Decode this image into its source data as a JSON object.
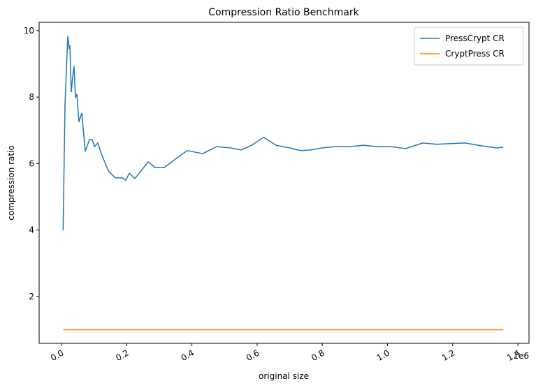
{
  "chart_data": {
    "type": "line",
    "title": "Compression Ratio Benchmark",
    "x_label": "original size",
    "y_label": "compression ratio",
    "x_offset_label": "1e6",
    "xlim": [
      -68600,
      1434000
    ],
    "ylim": [
      0.59,
      10.25
    ],
    "xticks": [
      {
        "value": 0,
        "label": "0.0"
      },
      {
        "value": 200000,
        "label": "0.2"
      },
      {
        "value": 400000,
        "label": "0.4"
      },
      {
        "value": 600000,
        "label": "0.6"
      },
      {
        "value": 800000,
        "label": "0.8"
      },
      {
        "value": 1000000,
        "label": "1.0"
      },
      {
        "value": 1200000,
        "label": "1.2"
      },
      {
        "value": 1400000,
        "label": "1.4"
      }
    ],
    "yticks": [
      2,
      4,
      6,
      8,
      10
    ],
    "grid": false,
    "legend": "upper right",
    "series": [
      {
        "name": "PressCrypt CR",
        "color": "#1f77b4",
        "x": [
          5000,
          10700,
          19300,
          23600,
          25700,
          30000,
          34300,
          38600,
          42900,
          47200,
          53600,
          62200,
          72900,
          85800,
          94300,
          100800,
          111500,
          122200,
          143700,
          165100,
          186500,
          197300,
          208000,
          225100,
          265900,
          287300,
          315200,
          358100,
          386000,
          411700,
          433100,
          476000,
          518900,
          551000,
          583200,
          619600,
          658200,
          701100,
          733300,
          765400,
          797600,
          840500,
          883400,
          926300,
          969200,
          1012000,
          1055100,
          1108500,
          1151400,
          1194300,
          1237100,
          1290700,
          1333600,
          1355000
        ],
        "values": [
          3.99,
          7.77,
          9.83,
          9.45,
          9.56,
          8.15,
          8.61,
          8.93,
          7.98,
          8.09,
          7.25,
          7.52,
          6.37,
          6.72,
          6.72,
          6.51,
          6.62,
          6.3,
          5.78,
          5.57,
          5.57,
          5.5,
          5.71,
          5.55,
          6.05,
          5.88,
          5.88,
          6.2,
          6.39,
          6.34,
          6.3,
          6.51,
          6.47,
          6.41,
          6.55,
          6.79,
          6.55,
          6.47,
          6.39,
          6.41,
          6.47,
          6.51,
          6.51,
          6.55,
          6.51,
          6.51,
          6.45,
          6.62,
          6.58,
          6.6,
          6.62,
          6.53,
          6.47,
          6.49
        ]
      },
      {
        "name": "CryptPress CR",
        "color": "#ff7f0e",
        "x": [
          5000,
          400000,
          800000,
          1355000
        ],
        "values": [
          1.0,
          1.0,
          1.0,
          1.0
        ]
      }
    ]
  }
}
